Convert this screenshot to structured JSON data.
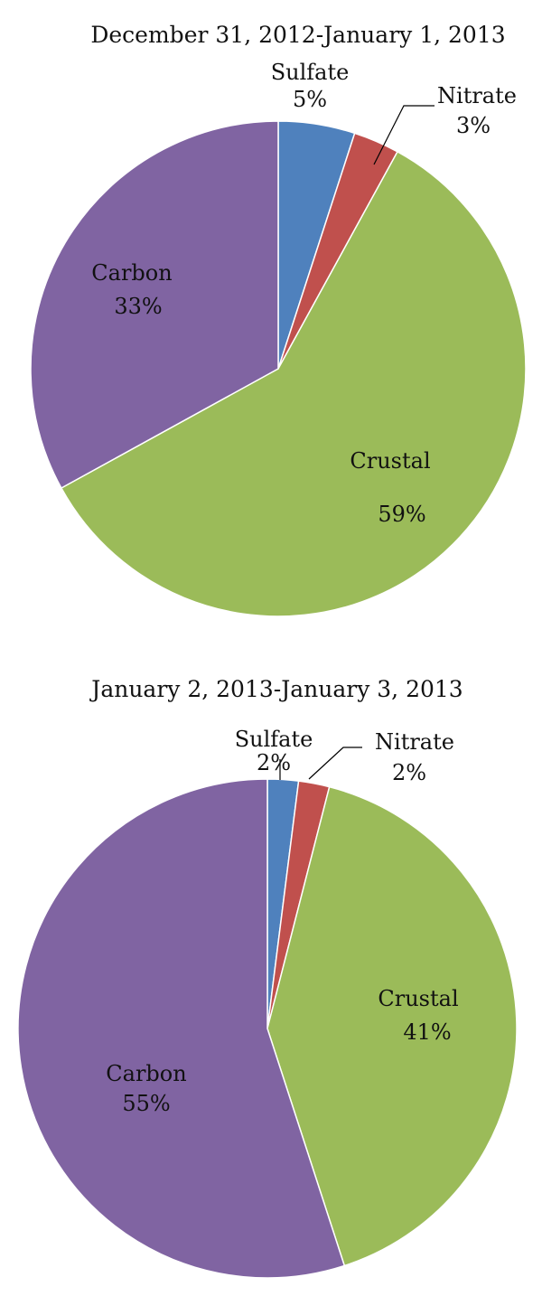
{
  "colors": {
    "Sulfate": "#4f81bd",
    "Nitrate": "#c0504d",
    "Crustal": "#9bbb59",
    "Carbon": "#8064a2"
  },
  "chart_data": [
    {
      "type": "pie",
      "title": "December 31, 2012-January 1, 2013",
      "slices": [
        {
          "name": "Sulfate",
          "value": 5,
          "label": "5%"
        },
        {
          "name": "Nitrate",
          "value": 3,
          "label": "3%"
        },
        {
          "name": "Crustal",
          "value": 59,
          "label": "59%"
        },
        {
          "name": "Carbon",
          "value": 33,
          "label": "33%"
        }
      ]
    },
    {
      "type": "pie",
      "title": "January 2, 2013-January 3, 2013",
      "slices": [
        {
          "name": "Sulfate",
          "value": 2,
          "label": "2%"
        },
        {
          "name": "Nitrate",
          "value": 2,
          "label": "2%"
        },
        {
          "name": "Crustal",
          "value": 41,
          "label": "41%"
        },
        {
          "name": "Carbon",
          "value": 55,
          "label": "55%"
        }
      ]
    }
  ]
}
